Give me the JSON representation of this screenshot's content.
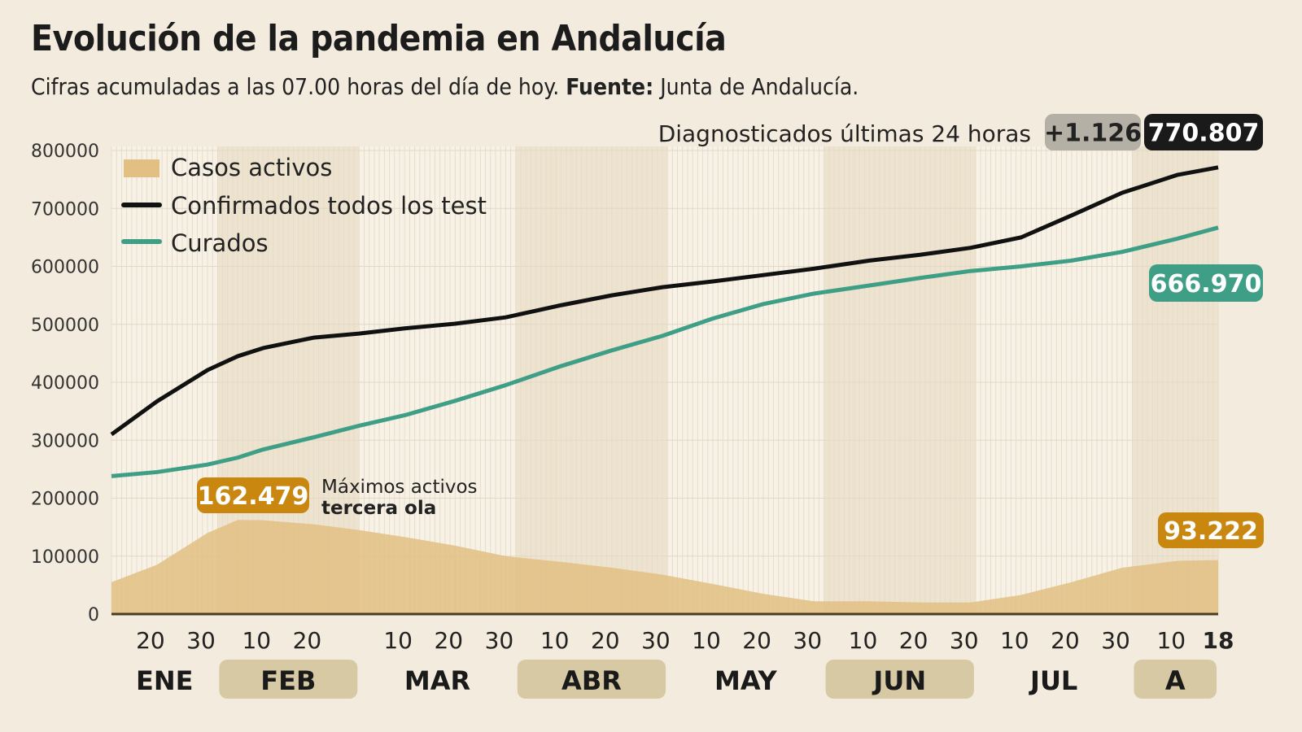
{
  "chart_data": {
    "type": "area+line",
    "title": "Evolución de la pandemia en Andalucía",
    "subtitle_prefix": "Cifras acumuladas a las 07.00 horas del día de hoy.",
    "subtitle_source_label": "Fuente:",
    "subtitle_source": "Junta de Andalucía.",
    "ylim": [
      0,
      800000
    ],
    "yticks": [
      "0",
      "100000",
      "200000",
      "300000",
      "400000",
      "500000",
      "600000",
      "700000",
      "800000"
    ],
    "xrange": [
      "2021-01-11",
      "2021-08-18"
    ],
    "day_ticks": [
      {
        "date": "2021-01-20",
        "label": "20"
      },
      {
        "date": "2021-01-30",
        "label": "30"
      },
      {
        "date": "2021-02-10",
        "label": "10"
      },
      {
        "date": "2021-02-20",
        "label": "20"
      },
      {
        "date": "2021-03-10",
        "label": "10"
      },
      {
        "date": "2021-03-20",
        "label": "20"
      },
      {
        "date": "2021-03-30",
        "label": "30"
      },
      {
        "date": "2021-04-10",
        "label": "10"
      },
      {
        "date": "2021-04-20",
        "label": "20"
      },
      {
        "date": "2021-04-30",
        "label": "30"
      },
      {
        "date": "2021-05-10",
        "label": "10"
      },
      {
        "date": "2021-05-20",
        "label": "20"
      },
      {
        "date": "2021-05-30",
        "label": "30"
      },
      {
        "date": "2021-06-10",
        "label": "10"
      },
      {
        "date": "2021-06-20",
        "label": "20"
      },
      {
        "date": "2021-06-30",
        "label": "30"
      },
      {
        "date": "2021-07-10",
        "label": "10"
      },
      {
        "date": "2021-07-20",
        "label": "20"
      },
      {
        "date": "2021-07-30",
        "label": "30"
      },
      {
        "date": "2021-08-10",
        "label": "10"
      },
      {
        "date": "2021-08-18",
        "label": "18",
        "bold": true
      }
    ],
    "months": [
      {
        "label": "ENE",
        "start": "2021-01-11",
        "end": "2021-02-01",
        "shaded": false
      },
      {
        "label": "FEB",
        "start": "2021-02-01",
        "end": "2021-03-01",
        "shaded": true
      },
      {
        "label": "MAR",
        "start": "2021-03-01",
        "end": "2021-04-01",
        "shaded": false
      },
      {
        "label": "ABR",
        "start": "2021-04-01",
        "end": "2021-05-01",
        "shaded": true
      },
      {
        "label": "MAY",
        "start": "2021-05-01",
        "end": "2021-06-01",
        "shaded": false
      },
      {
        "label": "JUN",
        "start": "2021-06-01",
        "end": "2021-07-01",
        "shaded": true
      },
      {
        "label": "JUL",
        "start": "2021-07-01",
        "end": "2021-08-01",
        "shaded": false
      },
      {
        "label": "A",
        "start": "2021-08-01",
        "end": "2021-08-18",
        "shaded": true
      }
    ],
    "legend_position": "top-left",
    "colors": {
      "activos": "#e2c083",
      "confirmados": "#111111",
      "curados": "#3f9e86",
      "activos_label": "#c9870f",
      "badge_gray": "#b5b0a5",
      "month_band": "#d6c9a4"
    },
    "dates": [
      "2021-01-11",
      "2021-01-20",
      "2021-01-30",
      "2021-02-05",
      "2021-02-10",
      "2021-02-20",
      "2021-03-01",
      "2021-03-10",
      "2021-03-20",
      "2021-03-30",
      "2021-04-10",
      "2021-04-20",
      "2021-04-30",
      "2021-05-10",
      "2021-05-20",
      "2021-05-30",
      "2021-06-10",
      "2021-06-20",
      "2021-06-30",
      "2021-07-10",
      "2021-07-20",
      "2021-07-30",
      "2021-08-10",
      "2021-08-18"
    ],
    "series": [
      {
        "name": "Casos activos",
        "type": "area",
        "values": [
          55000,
          85000,
          140000,
          162479,
          162000,
          155000,
          145000,
          133000,
          118000,
          100000,
          90000,
          80000,
          68000,
          52000,
          35000,
          22000,
          22000,
          20000,
          20000,
          33000,
          55000,
          80000,
          92000,
          93222
        ]
      },
      {
        "name": "Confirmados todos los test",
        "type": "line",
        "values": [
          310000,
          367000,
          421000,
          445000,
          459000,
          477000,
          484000,
          493000,
          501000,
          512000,
          533000,
          550000,
          564000,
          574000,
          585000,
          596000,
          610000,
          620000,
          632000,
          650000,
          688000,
          727000,
          758000,
          770807
        ]
      },
      {
        "name": "Curados",
        "type": "line",
        "values": [
          238000,
          245000,
          258000,
          270000,
          284000,
          305000,
          325000,
          343000,
          368000,
          395000,
          428000,
          455000,
          480000,
          510000,
          535000,
          553000,
          567000,
          580000,
          592000,
          600000,
          610000,
          625000,
          648000,
          666970
        ]
      }
    ],
    "annotations": {
      "daily_label": "Diagnosticados últimas 24 horas",
      "daily_increase": "+1.126",
      "confirmados_total": "770.807",
      "curados_total": "666.970",
      "activos_current": "93.222",
      "activos_max": "162.479",
      "activos_max_note_1": "Máximos activos",
      "activos_max_note_2": "tercera ola"
    }
  }
}
